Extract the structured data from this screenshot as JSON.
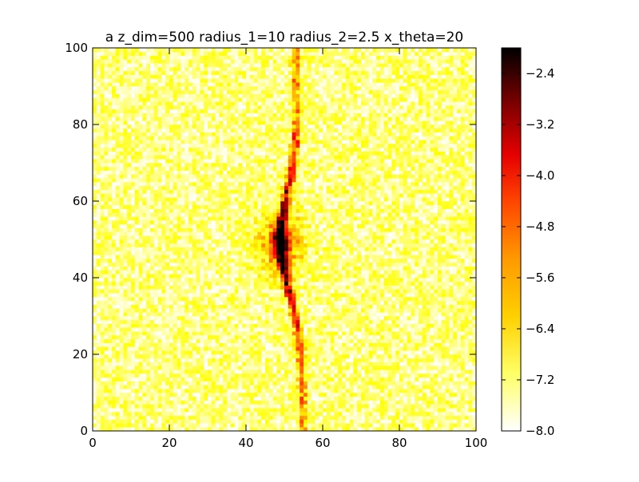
{
  "chart_data": {
    "type": "heatmap",
    "title": "a z_dim=500 radius_1=10 radius_2=2.5 x_theta=20",
    "xlabel": "",
    "ylabel": "",
    "xlim": [
      0,
      100
    ],
    "ylim": [
      0,
      100
    ],
    "x_ticks": [
      "0",
      "20",
      "40",
      "60",
      "80",
      "100"
    ],
    "y_ticks": [
      "0",
      "20",
      "40",
      "60",
      "80",
      "100"
    ],
    "grid_size": [
      100,
      100
    ],
    "colormap": "hot_r",
    "color_range": [
      -8.0,
      -2.0
    ],
    "colorbar_ticks": [
      "−2.4",
      "−3.2",
      "−4.0",
      "−4.8",
      "−5.6",
      "−6.4",
      "−7.2",
      "−8.0"
    ],
    "colorbar_tick_values": [
      -2.4,
      -3.2,
      -4.0,
      -4.8,
      -5.6,
      -6.4,
      -7.2,
      -8.0
    ],
    "features": {
      "peak": {
        "x": 49,
        "y": 49,
        "value": -2.2
      },
      "central_band": {
        "x_at_y0": 55,
        "x_at_y100": 53,
        "x_min": 49,
        "peak_y": 50
      },
      "background_level": -7.2
    }
  },
  "colors": {
    "ramp": [
      "#ffffff",
      "#ffff66",
      "#ffd000",
      "#ff9900",
      "#ff4400",
      "#e60000",
      "#800000",
      "#000000"
    ]
  }
}
